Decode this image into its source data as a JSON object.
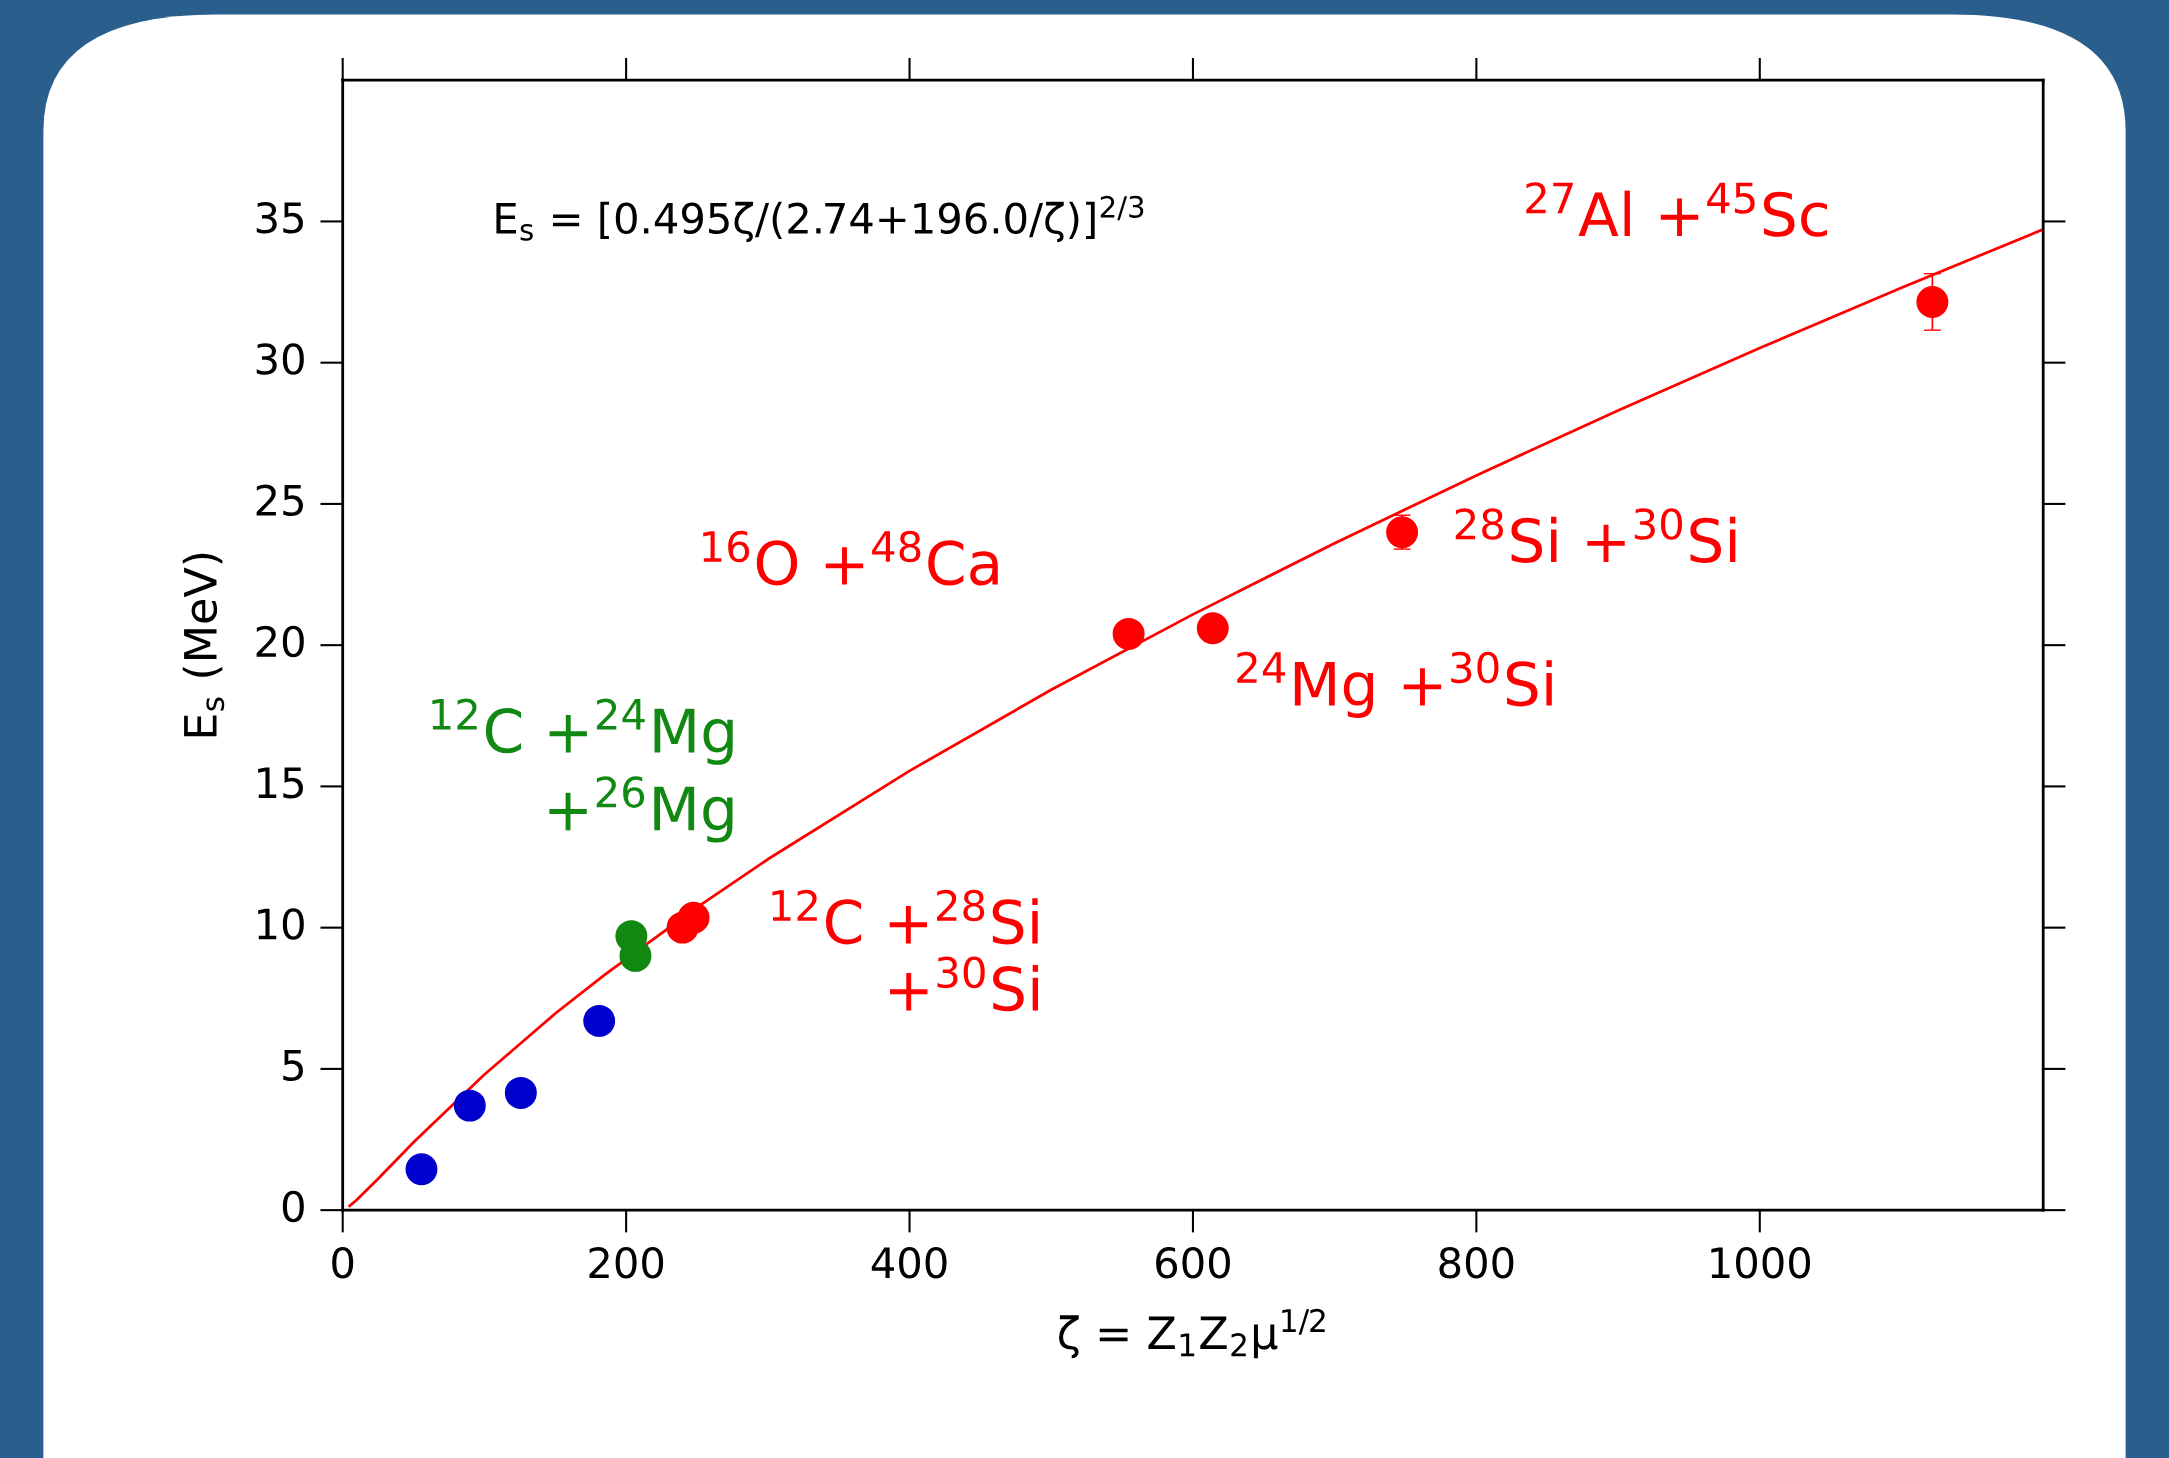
{
  "chart_data": {
    "type": "scatter",
    "xlabel": "ζ = Z$_{1}$Z$_{2}$μ$^{1/2}$",
    "ylabel": "E$_{s}$ (MeV)",
    "xlim": [
      0,
      1200
    ],
    "ylim": [
      0,
      40
    ],
    "xticks": [
      0,
      200,
      400,
      600,
      800,
      1000
    ],
    "yticks": [
      0,
      5,
      10,
      15,
      20,
      25,
      30,
      35
    ],
    "grid": false,
    "series": [
      {
        "color": "#0000cc",
        "marker": "circle",
        "x": [
          55.6,
          89.7,
          125.7,
          181
        ],
        "values": [
          1.45,
          3.7,
          4.15,
          6.7
        ]
      },
      {
        "name": "$^{12}$C +$^{24}$Mg\n+$^{26}$Mg",
        "color": "#118811",
        "marker": "circle",
        "x": [
          203.7,
          206.6
        ],
        "values": [
          9.7,
          9.0
        ]
      },
      {
        "name": "$^{12}$C +$^{28}$Si\n+$^{30}$Si",
        "color": "#ff0000",
        "marker": "circle",
        "x": [
          239.8,
          247.6
        ],
        "values": [
          10.0,
          10.35
        ],
        "errors": [
          0.4,
          0.3
        ]
      },
      {
        "name": "$^{16}$O +$^{48}$Ca",
        "color": "#ff0000",
        "marker": "circle",
        "x": [
          554.6
        ],
        "values": [
          20.4
        ]
      },
      {
        "name": "$^{24}$Mg +$^{30}$Si",
        "color": "#ff0000",
        "marker": "circle",
        "x": [
          614
        ],
        "values": [
          20.6
        ],
        "errors": [
          0.3
        ]
      },
      {
        "name": "$^{28}$Si +$^{30}$Si",
        "color": "#ff0000",
        "marker": "circle",
        "x": [
          747.6
        ],
        "values": [
          24.0
        ],
        "errors": [
          0.6
        ]
      },
      {
        "name": "$^{27}$Al +$^{45}$Sc",
        "color": "#ff0000",
        "marker": "circle",
        "x": [
          1121.8
        ],
        "values": [
          32.15
        ],
        "errors": [
          1.0
        ]
      },
      {
        "type": "line",
        "color": "#ff0000",
        "marker": "none",
        "line_style": "solid",
        "x": [
          5,
          10,
          25,
          50,
          100,
          150,
          185,
          250,
          300,
          400,
          500,
          600,
          700,
          800,
          900,
          1000,
          1100,
          1200
        ],
        "values": [
          0.15,
          0.37,
          1.11,
          2.4,
          4.8,
          6.96,
          8.34,
          10.72,
          12.42,
          15.55,
          18.42,
          21.09,
          23.61,
          26.01,
          28.31,
          30.52,
          32.65,
          34.72
        ]
      }
    ],
    "annotations": [
      "E$_{s}$ = [0.495ζ/(2.74+196.0/ζ)]$^{2/3}$"
    ]
  }
}
